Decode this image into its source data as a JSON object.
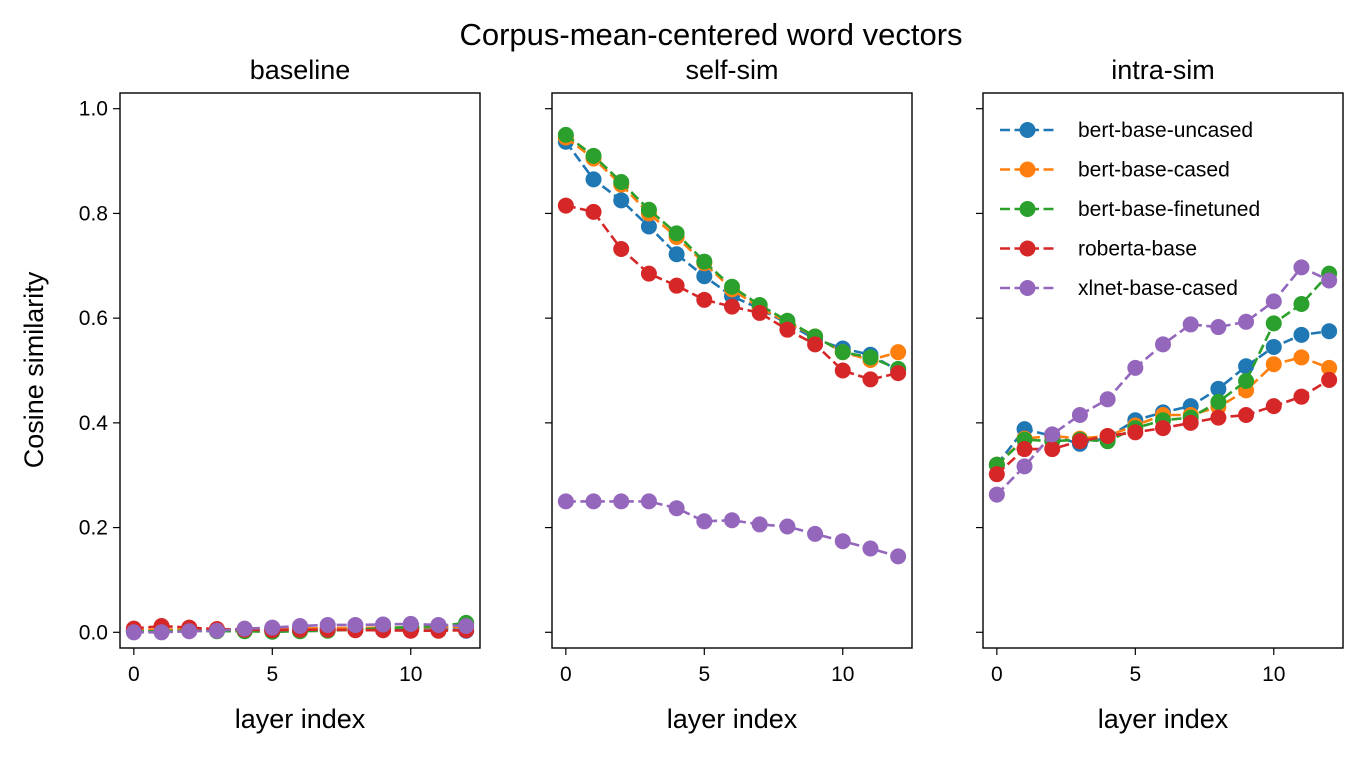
{
  "figure": {
    "title": "Corpus-mean-centered word vectors",
    "ylabel": "Cosine similarity"
  },
  "chart_data": [
    {
      "type": "line",
      "title": "baseline",
      "xlabel": "layer index",
      "ylabel": "Cosine similarity",
      "x": [
        0,
        1,
        2,
        3,
        4,
        5,
        6,
        7,
        8,
        9,
        10,
        11,
        12
      ],
      "xlim": [
        -0.5,
        12.5
      ],
      "ylim": [
        -0.03,
        1.03
      ],
      "xticks": [
        0,
        5,
        10
      ],
      "yticks": [
        0.0,
        0.2,
        0.4,
        0.6,
        0.8,
        1.0
      ],
      "ytick_labels": [
        "0.0",
        "0.2",
        "0.4",
        "0.6",
        "0.8",
        "1.0"
      ],
      "legend": false,
      "series": [
        {
          "name": "bert-base-uncased",
          "color": "#1f77b4",
          "values": [
            0.002,
            0.003,
            0.004,
            0.004,
            0.005,
            0.005,
            0.006,
            0.006,
            0.007,
            0.007,
            0.008,
            0.008,
            0.003
          ]
        },
        {
          "name": "bert-base-cased",
          "color": "#ff7f0e",
          "values": [
            0.004,
            0.005,
            0.005,
            0.006,
            0.006,
            0.007,
            0.007,
            0.008,
            0.008,
            0.009,
            0.009,
            0.01,
            0.01
          ]
        },
        {
          "name": "bert-base-finetuned",
          "color": "#2ca02c",
          "values": [
            0.002,
            0.002,
            0.003,
            0.002,
            0.002,
            0.001,
            0.002,
            0.003,
            0.005,
            0.008,
            0.01,
            0.012,
            0.018
          ]
        },
        {
          "name": "roberta-base",
          "color": "#d62728",
          "values": [
            0.007,
            0.012,
            0.009,
            0.006,
            0.005,
            0.004,
            0.005,
            0.005,
            0.004,
            0.004,
            0.003,
            0.003,
            0.004
          ]
        },
        {
          "name": "xlnet-base-cased",
          "color": "#9467bd",
          "values": [
            0.0,
            0.0,
            0.002,
            0.003,
            0.007,
            0.009,
            0.012,
            0.014,
            0.014,
            0.015,
            0.016,
            0.014,
            0.012
          ]
        }
      ]
    },
    {
      "type": "line",
      "title": "self-sim",
      "xlabel": "layer index",
      "x": [
        0,
        1,
        2,
        3,
        4,
        5,
        6,
        7,
        8,
        9,
        10,
        11,
        12
      ],
      "xlim": [
        -0.5,
        12.5
      ],
      "ylim": [
        -0.03,
        1.03
      ],
      "xticks": [
        0,
        5,
        10
      ],
      "yticks": [
        0.0,
        0.2,
        0.4,
        0.6,
        0.8,
        1.0
      ],
      "ytick_labels": [],
      "legend": false,
      "series": [
        {
          "name": "bert-base-uncased",
          "color": "#1f77b4",
          "values": [
            0.937,
            0.865,
            0.825,
            0.775,
            0.722,
            0.68,
            0.642,
            0.618,
            0.59,
            0.56,
            0.542,
            0.53,
            0.5
          ]
        },
        {
          "name": "bert-base-cased",
          "color": "#ff7f0e",
          "values": [
            0.945,
            0.905,
            0.855,
            0.8,
            0.755,
            0.705,
            0.655,
            0.62,
            0.592,
            0.565,
            0.535,
            0.52,
            0.535
          ]
        },
        {
          "name": "bert-base-finetuned",
          "color": "#2ca02c",
          "values": [
            0.95,
            0.91,
            0.86,
            0.807,
            0.762,
            0.708,
            0.66,
            0.625,
            0.595,
            0.565,
            0.535,
            0.525,
            0.503
          ]
        },
        {
          "name": "roberta-base",
          "color": "#d62728",
          "values": [
            0.815,
            0.803,
            0.732,
            0.685,
            0.662,
            0.635,
            0.622,
            0.61,
            0.578,
            0.55,
            0.5,
            0.483,
            0.495
          ]
        },
        {
          "name": "xlnet-base-cased",
          "color": "#9467bd",
          "values": [
            0.25,
            0.25,
            0.25,
            0.25,
            0.237,
            0.212,
            0.214,
            0.206,
            0.202,
            0.188,
            0.174,
            0.16,
            0.145
          ]
        }
      ]
    },
    {
      "type": "line",
      "title": "intra-sim",
      "xlabel": "layer index",
      "x": [
        0,
        1,
        2,
        3,
        4,
        5,
        6,
        7,
        8,
        9,
        10,
        11,
        12
      ],
      "xlim": [
        -0.5,
        12.5
      ],
      "ylim": [
        -0.03,
        1.03
      ],
      "xticks": [
        0,
        5,
        10
      ],
      "yticks": [
        0.0,
        0.2,
        0.4,
        0.6,
        0.8,
        1.0
      ],
      "ytick_labels": [],
      "legend": true,
      "legend_position": "top-left",
      "series": [
        {
          "name": "bert-base-uncased",
          "color": "#1f77b4",
          "values": [
            0.32,
            0.388,
            0.375,
            0.36,
            0.372,
            0.405,
            0.42,
            0.432,
            0.465,
            0.508,
            0.545,
            0.568,
            0.575
          ]
        },
        {
          "name": "bert-base-cased",
          "color": "#ff7f0e",
          "values": [
            0.32,
            0.37,
            0.375,
            0.37,
            0.375,
            0.395,
            0.415,
            0.415,
            0.43,
            0.462,
            0.512,
            0.525,
            0.505
          ]
        },
        {
          "name": "bert-base-finetuned",
          "color": "#2ca02c",
          "values": [
            0.32,
            0.368,
            0.365,
            0.368,
            0.365,
            0.39,
            0.405,
            0.41,
            0.44,
            0.48,
            0.59,
            0.627,
            0.685
          ]
        },
        {
          "name": "roberta-base",
          "color": "#d62728",
          "values": [
            0.302,
            0.35,
            0.35,
            0.365,
            0.375,
            0.382,
            0.39,
            0.4,
            0.41,
            0.415,
            0.432,
            0.45,
            0.482
          ]
        },
        {
          "name": "xlnet-base-cased",
          "color": "#9467bd",
          "values": [
            0.263,
            0.317,
            0.378,
            0.415,
            0.445,
            0.505,
            0.55,
            0.588,
            0.583,
            0.593,
            0.632,
            0.697,
            0.672
          ]
        }
      ]
    }
  ]
}
